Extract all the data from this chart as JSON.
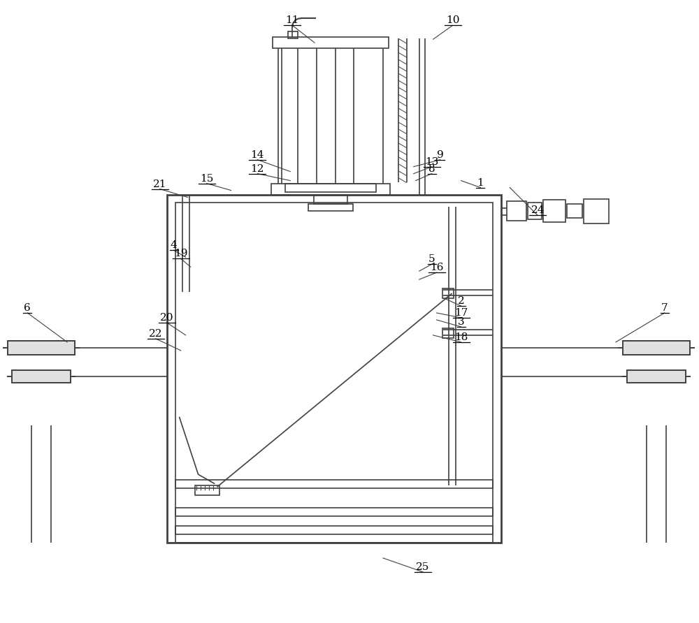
{
  "bg": "#ffffff",
  "lc": "#404040",
  "lw": 1.2,
  "tlw": 2.0,
  "fw": 10.0,
  "fh": 8.92,
  "labels": [
    [
      "1",
      688,
      268,
      660,
      258
    ],
    [
      "2",
      660,
      438,
      638,
      428
    ],
    [
      "3",
      660,
      468,
      625,
      458
    ],
    [
      "4",
      248,
      358,
      265,
      368
    ],
    [
      "5",
      618,
      378,
      600,
      388
    ],
    [
      "6",
      38,
      448,
      95,
      490
    ],
    [
      "7",
      952,
      448,
      882,
      490
    ],
    [
      "8",
      618,
      248,
      595,
      258
    ],
    [
      "9",
      630,
      228,
      592,
      238
    ],
    [
      "10",
      648,
      35,
      620,
      55
    ],
    [
      "11",
      418,
      35,
      450,
      60
    ],
    [
      "12",
      368,
      248,
      415,
      258
    ],
    [
      "13",
      618,
      238,
      592,
      248
    ],
    [
      "14",
      368,
      228,
      415,
      245
    ],
    [
      "15",
      295,
      262,
      330,
      272
    ],
    [
      "16",
      625,
      390,
      600,
      400
    ],
    [
      "17",
      660,
      455,
      625,
      448
    ],
    [
      "18",
      660,
      490,
      620,
      480
    ],
    [
      "19",
      258,
      370,
      272,
      382
    ],
    [
      "20",
      238,
      462,
      265,
      480
    ],
    [
      "21",
      228,
      270,
      268,
      282
    ],
    [
      "22",
      222,
      485,
      258,
      502
    ],
    [
      "24",
      770,
      308,
      730,
      268
    ],
    [
      "25",
      605,
      820,
      548,
      800
    ]
  ]
}
